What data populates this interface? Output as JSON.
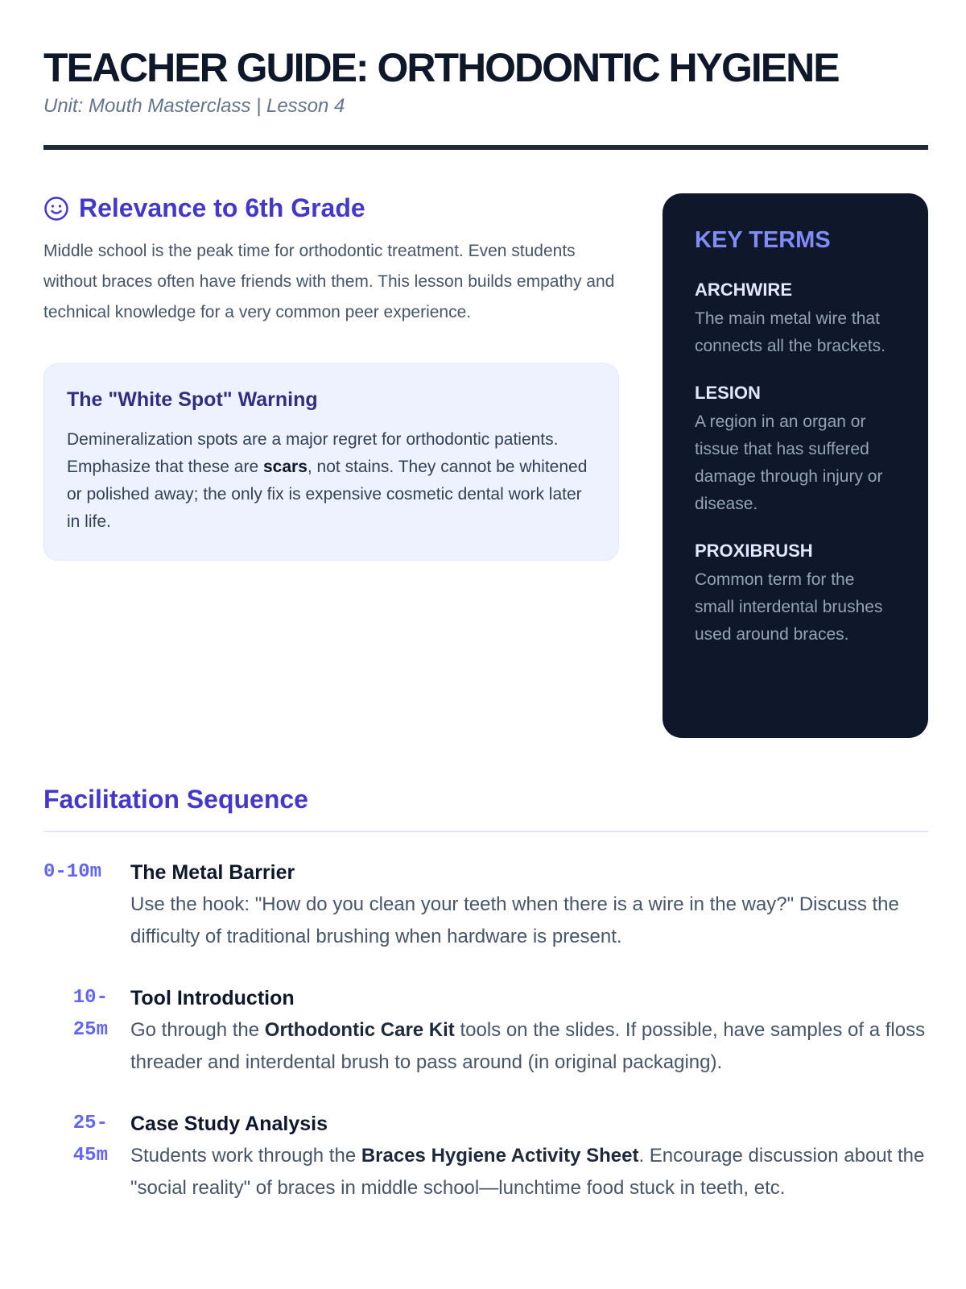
{
  "header": {
    "title": "TEACHER GUIDE: ORTHODONTIC HYGIENE",
    "subtitle": "Unit: Mouth Masterclass | Lesson 4"
  },
  "relevance": {
    "icon": "smiley-icon",
    "heading": "Relevance to 6th Grade",
    "text": "Middle school is the peak time for orthodontic treatment. Even students without braces often have friends with them. This lesson builds empathy and technical knowledge for a very common peer experience."
  },
  "warning": {
    "heading": "The \"White Spot\" Warning",
    "text_before": "Demineralization spots are a major regret for orthodontic patients. Emphasize that these are ",
    "bold": "scars",
    "text_after": ", not stains. They cannot be whitened or polished away; the only fix is expensive cosmetic dental work later in life."
  },
  "key_terms": {
    "heading": "KEY TERMS",
    "items": [
      {
        "term": "ARCHWIRE",
        "definition": "The main metal wire that connects all the brackets."
      },
      {
        "term": "LESION",
        "definition": "A region in an organ or tissue that has suffered damage through injury or disease."
      },
      {
        "term": "PROXIBRUSH",
        "definition": "Common term for the small interdental brushes used around braces."
      }
    ]
  },
  "facilitation": {
    "heading": "Facilitation Sequence",
    "steps": [
      {
        "time": "0-10m",
        "title": "The Metal Barrier",
        "pre": "Use the hook: \"How do you clean your teeth when there is a wire in the way?\" Discuss the difficulty of traditional brushing when hardware is present.",
        "bold": "",
        "post": ""
      },
      {
        "time": "10-25m",
        "title": "Tool Introduction",
        "pre": "Go through the ",
        "bold": "Orthodontic Care Kit",
        "post": " tools on the slides. If possible, have samples of a floss threader and interdental brush to pass around (in original packaging)."
      },
      {
        "time": "25-45m",
        "title": "Case Study Analysis",
        "pre": "Students work through the ",
        "bold": "Braces Hygiene Activity Sheet",
        "post": ". Encourage discussion about the \"social reality\" of braces in middle school—lunchtime food stuck in teeth, etc."
      }
    ]
  }
}
